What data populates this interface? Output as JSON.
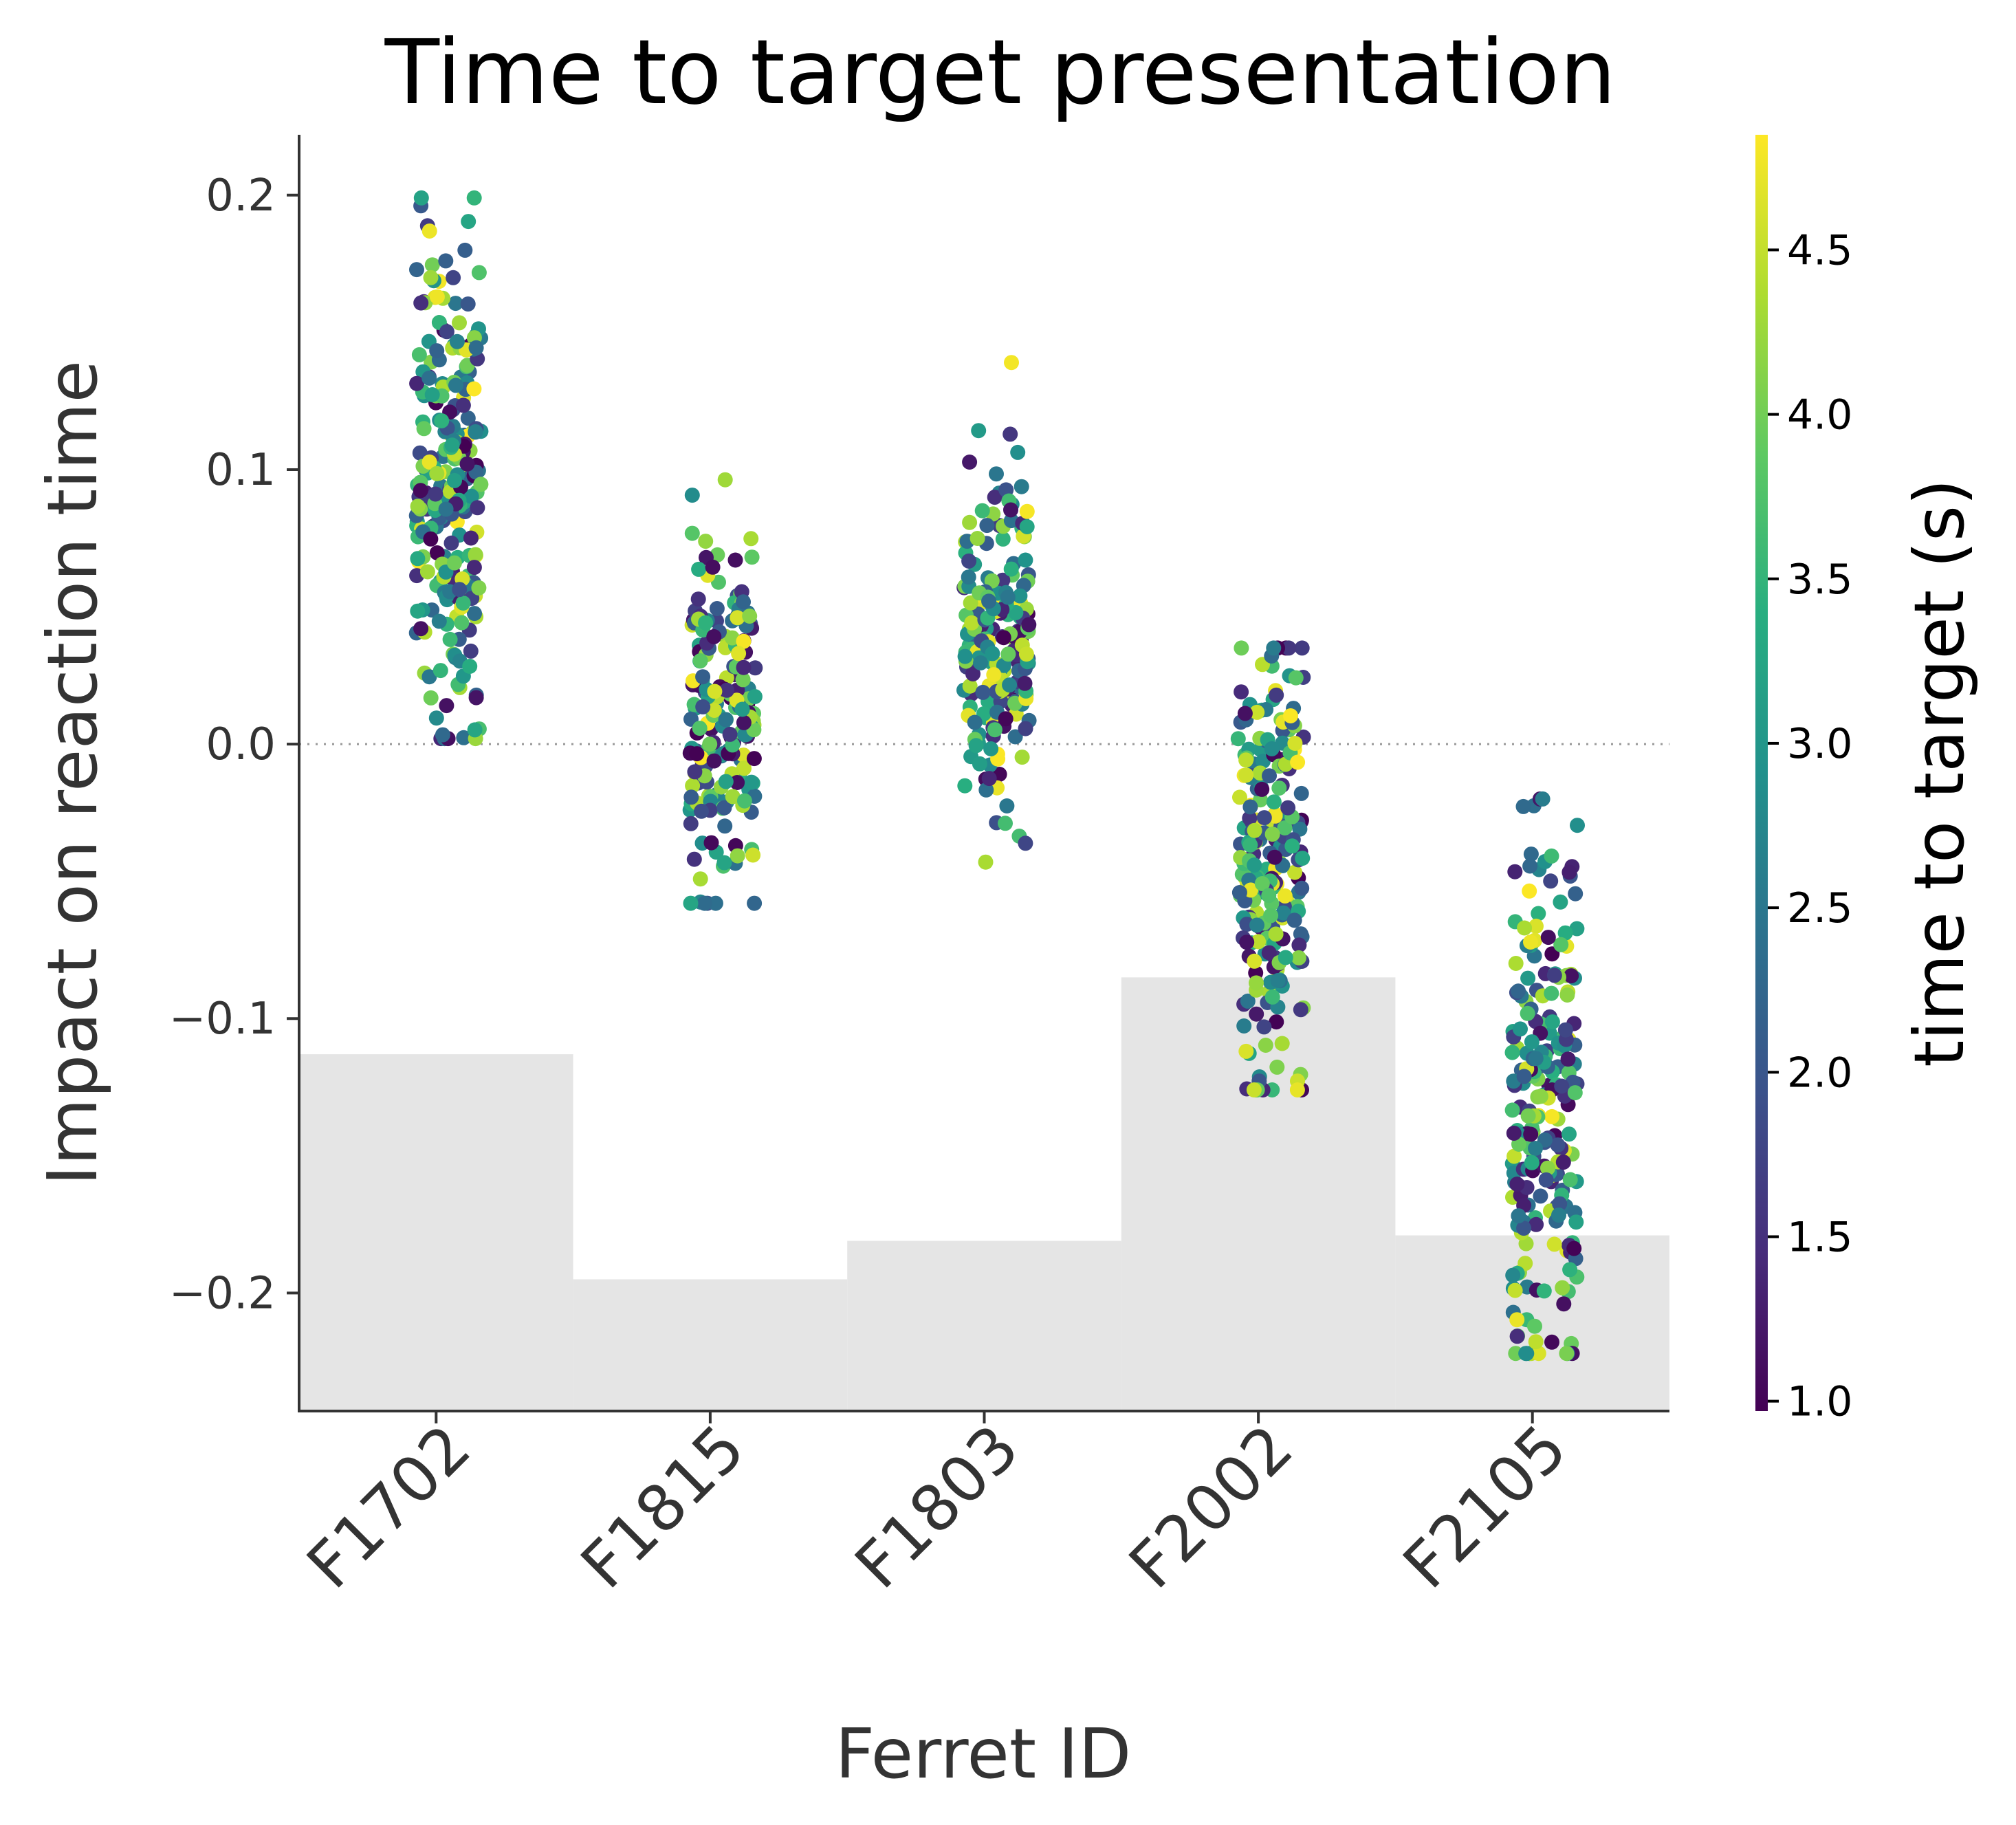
{
  "chart_data": {
    "type": "scatter",
    "title": "Time to target presentation",
    "xlabel": "Ferret ID",
    "ylabel": "Impact on reaction time",
    "categories": [
      "F1702",
      "F1815",
      "F1803",
      "F2002",
      "F2105"
    ],
    "ylim": [
      -0.243,
      0.222
    ],
    "yticks": [
      -0.2,
      -0.1,
      0.0,
      0.1,
      0.2
    ],
    "ytick_labels": [
      "−0.2",
      "−0.1",
      "0.0",
      "0.1",
      "0.2"
    ],
    "zero_line": true,
    "grid": false,
    "background_bars": {
      "color": "#e5e5e5",
      "values": [
        -0.113,
        -0.195,
        -0.181,
        -0.085,
        -0.179
      ]
    },
    "point_clouds": [
      {
        "category": "F1702",
        "center": 0.095,
        "spread": 0.045,
        "min": 0.002,
        "max": 0.199,
        "n": 260
      },
      {
        "category": "F1815",
        "center": 0.012,
        "spread": 0.035,
        "min": -0.058,
        "max": 0.141,
        "n": 200
      },
      {
        "category": "F1803",
        "center": 0.038,
        "spread": 0.032,
        "min": -0.043,
        "max": 0.146,
        "n": 210
      },
      {
        "category": "F2002",
        "center": -0.045,
        "spread": 0.04,
        "min": -0.126,
        "max": 0.035,
        "n": 240
      },
      {
        "category": "F2105",
        "center": -0.13,
        "spread": 0.05,
        "min": -0.222,
        "max": -0.02,
        "n": 230
      }
    ],
    "colorbar": {
      "label": "time to target (s)",
      "colormap": "viridis",
      "range": [
        0.97,
        4.85
      ],
      "ticks": [
        1.0,
        1.5,
        2.0,
        2.5,
        3.0,
        3.5,
        4.0,
        4.5
      ],
      "tick_labels": [
        "1.0",
        "1.5",
        "2.0",
        "2.5",
        "3.0",
        "3.5",
        "4.0",
        "4.5"
      ]
    }
  }
}
